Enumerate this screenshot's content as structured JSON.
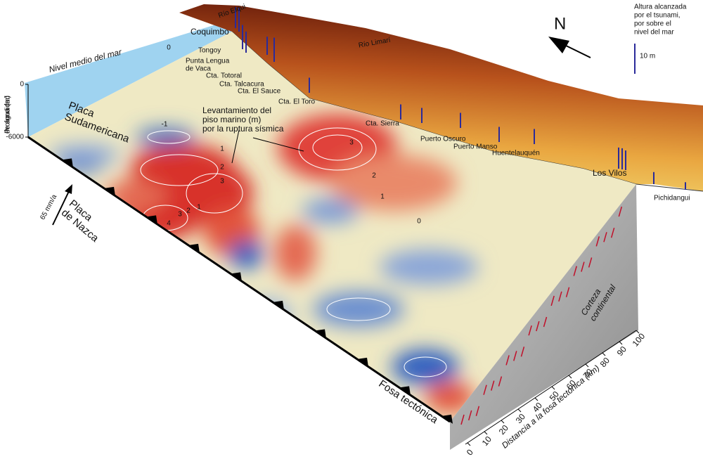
{
  "legend": {
    "title": [
      "Altura alcanzada",
      "por el tsunami,",
      "por sobre el",
      "nivel del mar"
    ],
    "scale_label": "10 m"
  },
  "north": "N",
  "places": [
    [
      "Río Elqui"
    ],
    [
      "Coquimbo"
    ],
    [
      "Tongoy"
    ],
    [
      "Punta Lengua",
      "de Vaca"
    ],
    [
      "Cta. Totoral"
    ],
    [
      "Cta. Talcacura"
    ],
    [
      "Cta. El Sauce"
    ],
    [
      "Cta. El Toro"
    ],
    [
      "Río Limarí"
    ],
    [
      "Cta. Sierra"
    ],
    [
      "Puerto Oscuro"
    ],
    [
      "Puerto Manso"
    ],
    [
      "Huentelauquén"
    ],
    [
      "Los Vilos"
    ],
    [
      "Pichidangui"
    ]
  ],
  "labels": {
    "sea_level": "Nivel medio del mar",
    "depth_axis": [
      "Profundidad",
      "de agua (m)"
    ],
    "south_american_plate": [
      "Placa",
      "Sudamericana"
    ],
    "nazca_plate": [
      "Placa",
      "de Nazca"
    ],
    "plate_rate": "65 mm/a",
    "uplift": [
      "Levantamiento del",
      "piso marino (m)",
      "por la ruptura sísmica"
    ],
    "trench": "Fosa tectónica",
    "crust": [
      "Corteza",
      "continental"
    ],
    "distance_axis": "Distancia a la fosa tectónica (km)"
  },
  "depth_ticks": [
    0,
    -6000
  ],
  "distance_ticks": [
    0,
    10,
    20,
    30,
    40,
    50,
    60,
    70,
    80,
    90,
    100
  ],
  "contour_labels": [
    0,
    -1,
    1,
    2,
    3,
    3,
    2,
    1,
    0,
    4,
    3,
    2,
    1
  ],
  "tsunami_heights_m": [
    7,
    8,
    8,
    7,
    6,
    8,
    5,
    5,
    5,
    5,
    5,
    5,
    7,
    7,
    6.5,
    4,
    2.5
  ]
}
